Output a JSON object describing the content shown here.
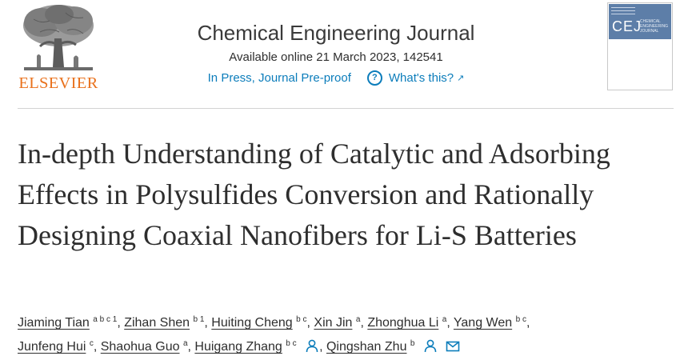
{
  "publisher": {
    "name": "ELSEVIER"
  },
  "journal": {
    "title": "Chemical Engineering Journal",
    "availability": "Available online 21 March 2023, 142541",
    "status_link": "In Press, Journal Pre-proof",
    "help_link": "What's this?"
  },
  "cover": {
    "acronym": "CEJ",
    "subtitle": "CHEMICAL ENGINEERING JOURNAL"
  },
  "article": {
    "title": "In-depth Understanding of Catalytic and Adsorbing Effects in Polysulfides Conversion and Rationally Designing Coaxial Nanofibers for Li-S Batteries",
    "authors": [
      {
        "name": "Jiaming Tian",
        "affiliations": "a b c 1"
      },
      {
        "name": "Zihan Shen",
        "affiliations": "b 1"
      },
      {
        "name": "Huiting Cheng",
        "affiliations": "b c"
      },
      {
        "name": "Xin Jin",
        "affiliations": "a"
      },
      {
        "name": "Zhonghua Li",
        "affiliations": "a"
      },
      {
        "name": "Yang Wen",
        "affiliations": "b c"
      },
      {
        "name": "Junfeng Hui",
        "affiliations": "c"
      },
      {
        "name": "Shaohua Guo",
        "affiliations": "a"
      },
      {
        "name": "Huigang Zhang",
        "affiliations": "b c"
      },
      {
        "name": "Qingshan Zhu",
        "affiliations": "b"
      }
    ]
  },
  "icons": {
    "logo": "elsevier-tree-logo",
    "help": "question-circle-icon",
    "external": "arrow-up-right-icon",
    "corresponding": "person-icon",
    "email": "envelope-icon"
  },
  "colors": {
    "link": "#0c7dbb",
    "elsevier_orange": "#e9711c",
    "cover_band": "#5d7ea8"
  }
}
